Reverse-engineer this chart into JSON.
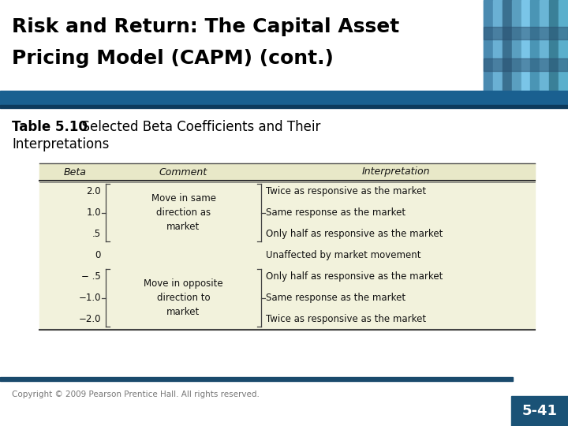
{
  "title_line1": "Risk and Return: The Capital Asset",
  "title_line2": "Pricing Model (CAPM) (cont.)",
  "header_bar_color": "#1a6090",
  "header_bar_thin_color": "#0d3a5c",
  "table_caption_bold": "Table 5.10",
  "table_caption_rest": "  Selected Beta Coefficients and Their",
  "table_caption_line2": "Interpretations",
  "table_bg": "#f2f2dc",
  "table_header_bg": "#e8e8c8",
  "col_headers": [
    "Beta",
    "Comment",
    "Interpretation"
  ],
  "rows": [
    {
      "beta": "2.0",
      "interp": "Twice as responsive as the market"
    },
    {
      "beta": "1.0",
      "interp": "Same response as the market"
    },
    {
      "beta": ".5",
      "interp": "Only half as responsive as the market"
    },
    {
      "beta": "0",
      "interp": "Unaffected by market movement"
    },
    {
      "beta": "− .5",
      "interp": "Only half as responsive as the market"
    },
    {
      "beta": "−1.0",
      "interp": "Same response as the market"
    },
    {
      "beta": "−2.0",
      "interp": "Twice as responsive as the market"
    }
  ],
  "comment_group1": "Move in same\ndirection as\nmarket",
  "comment_group2": "Move in opposite\ndirection to\nmarket",
  "footer_text": "Copyright © 2009 Pearson Prentice Hall. All rights reserved.",
  "slide_num": "5-41",
  "slide_num_bg": "#1a5276",
  "slide_num_color": "#ffffff",
  "bottom_rule_color": "#1a4a6c"
}
